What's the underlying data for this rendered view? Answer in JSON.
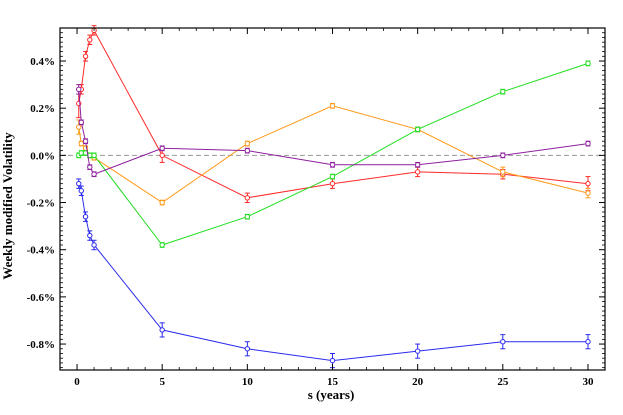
{
  "chart_data": {
    "type": "line",
    "title": "",
    "xlabel": "s (years)",
    "ylabel": "Weekly modified Volatility",
    "xlim": [
      -1,
      31
    ],
    "ylim": [
      -0.0091,
      0.0054
    ],
    "xticks": [
      0,
      5,
      10,
      15,
      20,
      25,
      30
    ],
    "yticks": [
      -0.008,
      -0.006,
      -0.004,
      -0.002,
      0.0,
      0.002,
      0.004
    ],
    "ytick_labels": [
      "-0.8%",
      "-0.6%",
      "-0.4%",
      "-0.2%",
      "0.0%",
      "0.2%",
      "0.4%"
    ],
    "reference_line": {
      "y": 0.0,
      "style": "dashed",
      "color": "#999999"
    },
    "grid": false,
    "legend": "none",
    "series": [
      {
        "color": "#ff2a2a",
        "marker": "open-circle",
        "x": [
          0.1,
          0.25,
          0.5,
          0.75,
          1,
          5,
          10,
          15,
          20,
          25,
          30
        ],
        "y": [
          0.0022,
          0.0028,
          0.0042,
          0.0049,
          0.0053,
          0.0,
          -0.0018,
          -0.0012,
          -0.0007,
          -0.0008,
          -0.0012
        ],
        "err": [
          0.0006,
          0.0002,
          0.0002,
          0.0002,
          0.0002,
          0.0003,
          0.0002,
          0.0002,
          0.0002,
          0.0002,
          0.0003
        ]
      },
      {
        "color": "#ff9a1a",
        "marker": "open-circle",
        "x": [
          0.1,
          0.25,
          0.5,
          0.75,
          1,
          5,
          10,
          15,
          20,
          25,
          30
        ],
        "y": [
          0.0012,
          0.0005,
          0.0003,
          0.0,
          -0.0001,
          -0.002,
          0.0005,
          0.0021,
          0.0011,
          -0.0007,
          -0.0016
        ],
        "err": [
          0.0003,
          0.0001,
          0.0001,
          0.0001,
          0.0001,
          0.0001,
          0.0001,
          0.0001,
          0.0001,
          0.0002,
          0.0002
        ]
      },
      {
        "color": "#22dd22",
        "marker": "open-circle",
        "x": [
          0.1,
          0.25,
          0.5,
          0.75,
          1,
          5,
          10,
          15,
          20,
          25,
          30
        ],
        "y": [
          0.0,
          0.0001,
          0.0001,
          0.0,
          0.0,
          -0.0038,
          -0.0026,
          -0.0009,
          0.0011,
          0.0027,
          0.0039
        ],
        "err": [
          0.0001,
          0.0001,
          0.0001,
          0.0001,
          0.0001,
          0.0001,
          0.0001,
          0.0001,
          0.0001,
          0.0001,
          0.0001
        ]
      },
      {
        "color": "#8e1f9e",
        "marker": "open-circle",
        "x": [
          0.1,
          0.25,
          0.5,
          0.75,
          1,
          5,
          10,
          15,
          20,
          25,
          30
        ],
        "y": [
          0.0028,
          0.0014,
          0.0006,
          -0.0005,
          -0.0008,
          0.0003,
          0.0002,
          -0.0004,
          -0.0004,
          0.0,
          0.0005
        ],
        "err": [
          0.0002,
          0.0001,
          0.0001,
          0.0001,
          0.0001,
          0.0001,
          0.0001,
          0.0001,
          0.0001,
          0.0001,
          0.0001
        ]
      },
      {
        "color": "#2a2aee",
        "marker": "open-circle",
        "x": [
          0.1,
          0.25,
          0.5,
          0.75,
          1,
          5,
          10,
          15,
          20,
          25,
          30
        ],
        "y": [
          -0.0012,
          -0.0015,
          -0.0026,
          -0.0034,
          -0.0038,
          -0.0074,
          -0.0082,
          -0.0087,
          -0.0083,
          -0.0079,
          -0.0079
        ],
        "err": [
          0.0002,
          0.0002,
          0.0002,
          0.0002,
          0.0002,
          0.0003,
          0.0003,
          0.0003,
          0.0003,
          0.0003,
          0.0003
        ]
      }
    ]
  }
}
